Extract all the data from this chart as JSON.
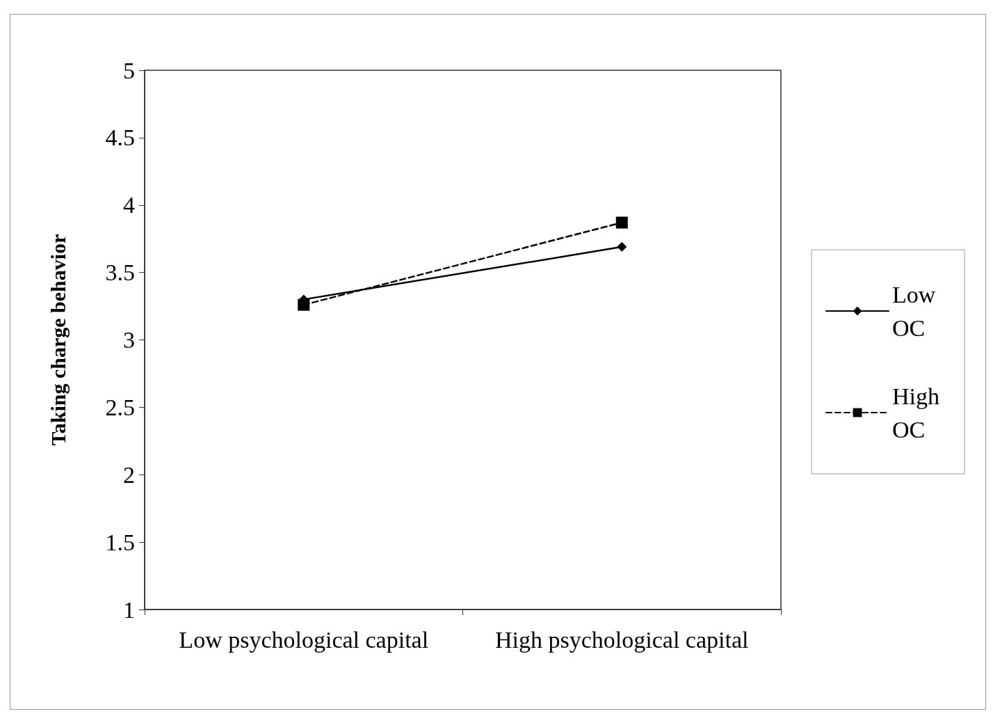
{
  "chart_data": {
    "type": "line",
    "ylabel": "Taking charge behavior",
    "categories": [
      "Low psychological capital",
      "High psychological capital"
    ],
    "series": [
      {
        "name": "Low OC",
        "color": "#000000",
        "values": [
          3.3,
          3.69
        ],
        "marker": "diamond",
        "line_style": "solid"
      },
      {
        "name": "High OC",
        "color": "#000000",
        "values": [
          3.26,
          3.87
        ],
        "marker": "square",
        "line_style": "dashed"
      }
    ],
    "ylim": [
      1,
      5
    ],
    "yticks": [
      1,
      1.5,
      2,
      2.5,
      3,
      3.5,
      4,
      4.5,
      5
    ],
    "grid": false,
    "legend": "right"
  }
}
